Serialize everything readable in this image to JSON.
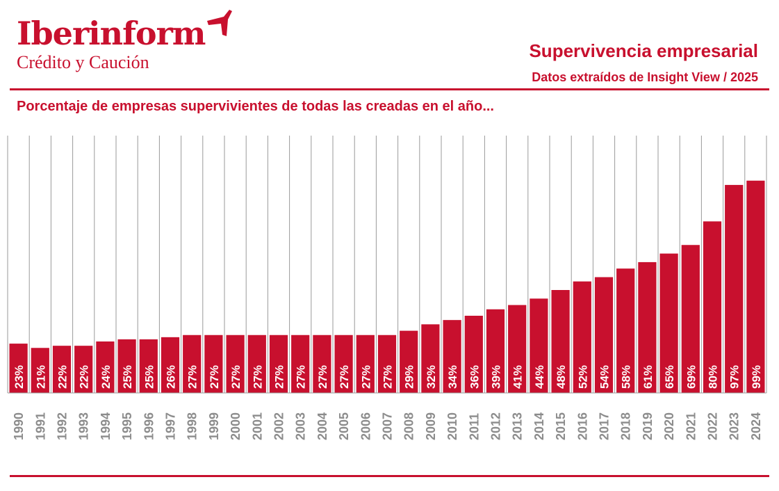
{
  "brand": {
    "name": "Iberinform",
    "subtitle": "Crédito y Caución"
  },
  "header": {
    "title": "Supervivencia empresarial",
    "subtitle": "Datos extraídos de Insight View / 2025",
    "caption": "Porcentaje de empresas supervivientes de todas las creadas en el año..."
  },
  "colors": {
    "accent": "#c8102e",
    "grid": "#9a9a9a",
    "axis_label": "#8c8c8c"
  },
  "chart_data": {
    "type": "bar",
    "categories": [
      "1990",
      "1991",
      "1992",
      "1993",
      "1994",
      "1995",
      "1996",
      "1997",
      "1998",
      "1999",
      "2000",
      "2001",
      "2002",
      "2003",
      "2004",
      "2005",
      "2006",
      "2007",
      "2008",
      "2009",
      "2010",
      "2011",
      "2012",
      "2013",
      "2014",
      "2015",
      "2016",
      "2017",
      "2018",
      "2019",
      "2020",
      "2021",
      "2022",
      "2023",
      "2024"
    ],
    "values": [
      23,
      21,
      22,
      22,
      24,
      25,
      25,
      26,
      27,
      27,
      27,
      27,
      27,
      27,
      27,
      27,
      27,
      27,
      29,
      32,
      34,
      36,
      39,
      41,
      44,
      48,
      52,
      54,
      58,
      61,
      65,
      69,
      80,
      97,
      99
    ],
    "data_labels": [
      "23%",
      "21%",
      "22%",
      "22%",
      "24%",
      "25%",
      "25%",
      "26%",
      "27%",
      "27%",
      "27%",
      "27%",
      "27%",
      "27%",
      "27%",
      "27%",
      "27%",
      "27%",
      "29%",
      "32%",
      "34%",
      "36%",
      "39%",
      "41%",
      "44%",
      "48%",
      "52%",
      "54%",
      "58%",
      "61%",
      "65%",
      "69%",
      "80%",
      "97%",
      "99%"
    ],
    "ylim": [
      0,
      120
    ],
    "grid": "vertical",
    "legend": "none"
  }
}
